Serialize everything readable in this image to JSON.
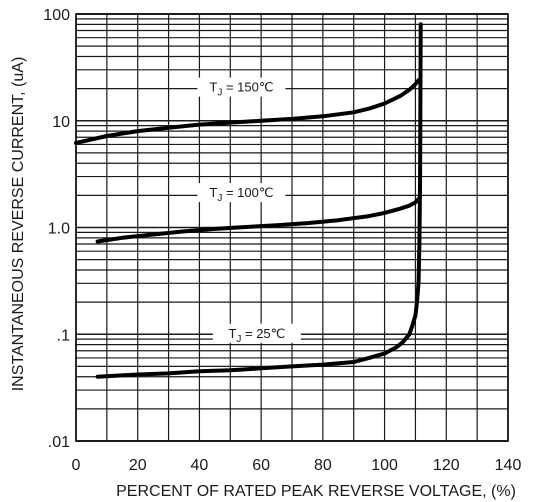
{
  "chart_data": {
    "type": "line",
    "title": "",
    "xlabel": "PERCENT OF RATED PEAK REVERSE VOLTAGE, (%)",
    "ylabel": "INSTANTANEOUS REVERSE CURRENT, (uA)",
    "xlim": [
      0,
      140
    ],
    "ylim": [
      0.01,
      100
    ],
    "yscale": "log",
    "grid": true,
    "legend": "none",
    "x_ticks": [
      "0",
      "20",
      "40",
      "60",
      "80",
      "100",
      "120",
      "140"
    ],
    "y_ticks": [
      "100",
      "10",
      "1.0",
      ".1",
      ".01"
    ],
    "series": [
      {
        "name": "TJ = 150℃",
        "label_main": "T",
        "label_sub": "J",
        "label_rest": " = 150℃",
        "label_x": 40,
        "x": [
          0,
          10,
          20,
          30,
          40,
          50,
          60,
          70,
          80,
          90,
          95,
          100,
          105,
          108,
          110,
          111
        ],
        "y": [
          6.2,
          7.2,
          8.0,
          8.6,
          9.2,
          9.6,
          10.0,
          10.4,
          11.0,
          12.0,
          13.0,
          14.5,
          17.0,
          19.5,
          22.0,
          24.0
        ]
      },
      {
        "name": "TJ = 100℃",
        "label_main": "T",
        "label_sub": "J",
        "label_rest": " = 100℃",
        "label_x": 40,
        "x": [
          7,
          15,
          25,
          35,
          45,
          55,
          65,
          75,
          85,
          95,
          100,
          105,
          108,
          110,
          111
        ],
        "y": [
          0.74,
          0.8,
          0.86,
          0.92,
          0.97,
          1.01,
          1.05,
          1.1,
          1.17,
          1.28,
          1.37,
          1.5,
          1.6,
          1.72,
          1.85
        ]
      },
      {
        "name": "TJ = 25℃",
        "label_main": "T",
        "label_sub": "J",
        "label_rest": " = 25℃",
        "label_x": 45,
        "x": [
          7,
          20,
          30,
          40,
          50,
          60,
          70,
          80,
          90,
          95,
          100,
          104,
          106,
          108,
          109,
          110,
          110.5,
          111,
          111.3,
          111.5,
          111.7
        ],
        "y": [
          0.04,
          0.042,
          0.043,
          0.045,
          0.046,
          0.048,
          0.05,
          0.052,
          0.055,
          0.06,
          0.066,
          0.076,
          0.085,
          0.1,
          0.12,
          0.15,
          0.2,
          0.3,
          0.7,
          3.0,
          80.0
        ]
      }
    ],
    "colors": {
      "line": "#000000",
      "grid": "#1a1a1a",
      "text": "#1a1a1a"
    }
  }
}
